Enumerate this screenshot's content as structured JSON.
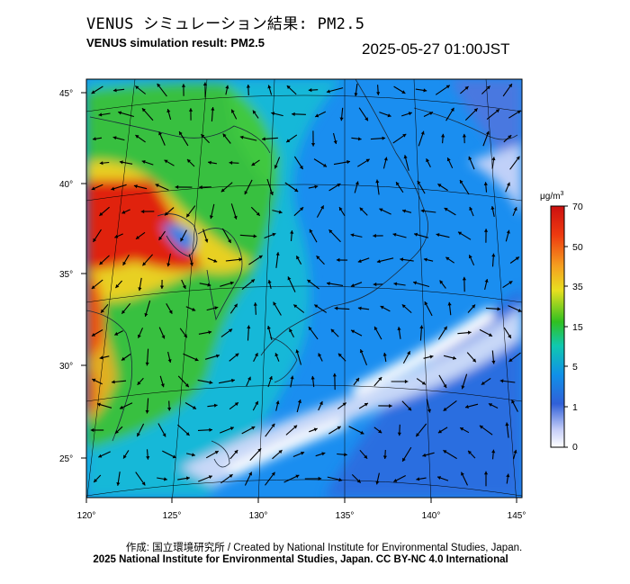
{
  "header": {
    "title_jp": "VENUS シミュレーション結果: PM2.5",
    "title_en": "VENUS simulation result: PM2.5",
    "timestamp": "2025-05-27 01:00JST"
  },
  "map": {
    "lon_labels": [
      "120°",
      "125°",
      "130°",
      "135°",
      "140°",
      "145°"
    ],
    "lat_labels": [
      "45°",
      "40°",
      "35°",
      "30°",
      "25°"
    ],
    "lon_range": [
      120,
      145
    ],
    "lat_range": [
      23,
      46
    ]
  },
  "colorbar": {
    "unit_base": "μg/m",
    "unit_sup": "3",
    "tick_labels": [
      "70",
      "50",
      "35",
      "15",
      "5",
      "1",
      "0"
    ],
    "colors": [
      "#cc1010",
      "#ee3a10",
      "#f5a020",
      "#e8e020",
      "#30c020",
      "#10c8b0",
      "#1090e8",
      "#3060d8",
      "#c8d0f8",
      "#ffffff"
    ]
  },
  "footer": {
    "credit_line1": "作成: 国立環境研究所 / Created by National Institute for Environmental Studies, Japan.",
    "credit_line2": "2025 National Institute for Environmental Studies, Japan. CC BY-NC 4.0 International"
  }
}
